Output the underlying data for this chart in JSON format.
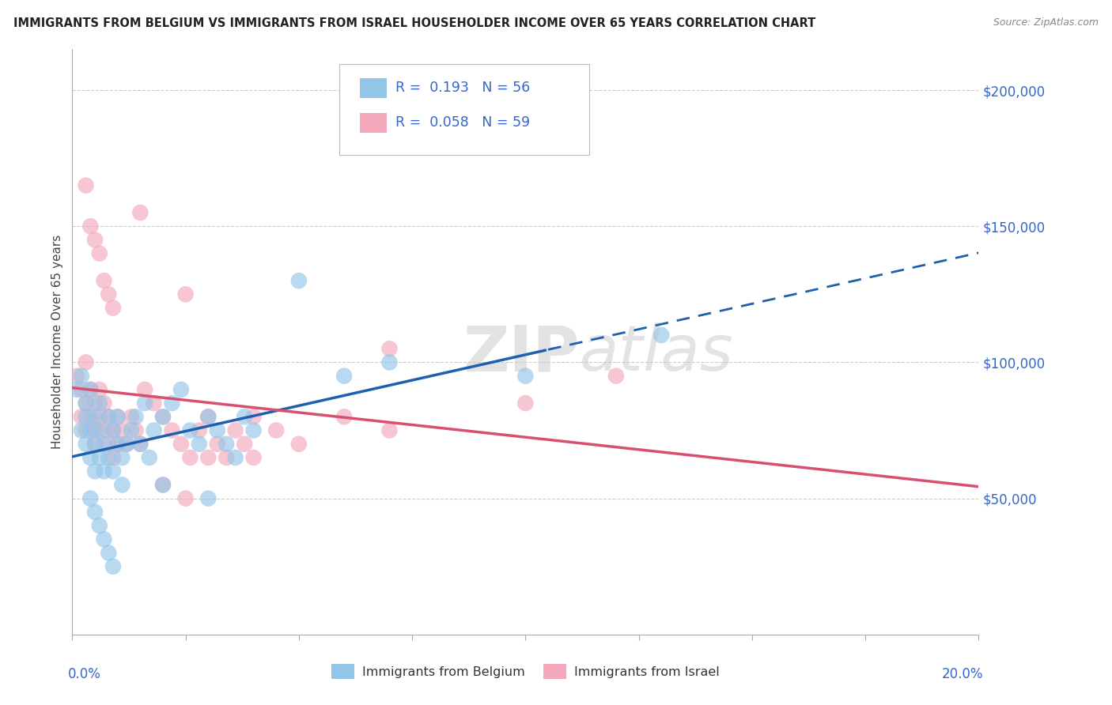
{
  "title": "IMMIGRANTS FROM BELGIUM VS IMMIGRANTS FROM ISRAEL HOUSEHOLDER INCOME OVER 65 YEARS CORRELATION CHART",
  "source": "Source: ZipAtlas.com",
  "ylabel": "Householder Income Over 65 years",
  "xlim": [
    0.0,
    0.2
  ],
  "ylim": [
    0,
    215000
  ],
  "yticks": [
    50000,
    100000,
    150000,
    200000
  ],
  "ytick_labels": [
    "$50,000",
    "$100,000",
    "$150,000",
    "$200,000"
  ],
  "belgium_R": 0.193,
  "belgium_N": 56,
  "israel_R": 0.058,
  "israel_N": 59,
  "belgium_color": "#92C5E8",
  "israel_color": "#F4A8BC",
  "belgium_line_color": "#1F5FAD",
  "israel_line_color": "#D94F70",
  "legend_label_belgium": "Immigrants from Belgium",
  "legend_label_israel": "Immigrants from Israel",
  "background_color": "#FFFFFF",
  "grid_color": "#CCCCCC",
  "watermark": "ZIPatlas",
  "belgium_x": [
    0.001,
    0.002,
    0.002,
    0.003,
    0.003,
    0.003,
    0.004,
    0.004,
    0.004,
    0.005,
    0.005,
    0.005,
    0.006,
    0.006,
    0.006,
    0.007,
    0.007,
    0.008,
    0.008,
    0.009,
    0.009,
    0.01,
    0.01,
    0.011,
    0.011,
    0.012,
    0.013,
    0.014,
    0.015,
    0.016,
    0.017,
    0.018,
    0.02,
    0.022,
    0.024,
    0.026,
    0.028,
    0.03,
    0.032,
    0.034,
    0.036,
    0.038,
    0.04,
    0.05,
    0.06,
    0.07,
    0.004,
    0.005,
    0.006,
    0.007,
    0.008,
    0.009,
    0.02,
    0.03,
    0.1,
    0.13
  ],
  "belgium_y": [
    90000,
    95000,
    75000,
    80000,
    85000,
    70000,
    90000,
    75000,
    65000,
    80000,
    70000,
    60000,
    85000,
    75000,
    65000,
    70000,
    60000,
    80000,
    65000,
    75000,
    60000,
    70000,
    80000,
    65000,
    55000,
    70000,
    75000,
    80000,
    70000,
    85000,
    65000,
    75000,
    80000,
    85000,
    90000,
    75000,
    70000,
    80000,
    75000,
    70000,
    65000,
    80000,
    75000,
    130000,
    95000,
    100000,
    50000,
    45000,
    40000,
    35000,
    30000,
    25000,
    55000,
    50000,
    95000,
    110000
  ],
  "israel_x": [
    0.001,
    0.002,
    0.002,
    0.003,
    0.003,
    0.003,
    0.004,
    0.004,
    0.005,
    0.005,
    0.005,
    0.006,
    0.006,
    0.007,
    0.007,
    0.008,
    0.008,
    0.009,
    0.009,
    0.01,
    0.01,
    0.011,
    0.012,
    0.013,
    0.014,
    0.015,
    0.016,
    0.018,
    0.02,
    0.022,
    0.024,
    0.026,
    0.028,
    0.03,
    0.032,
    0.034,
    0.036,
    0.038,
    0.04,
    0.045,
    0.05,
    0.06,
    0.07,
    0.003,
    0.004,
    0.005,
    0.006,
    0.007,
    0.008,
    0.009,
    0.02,
    0.025,
    0.03,
    0.07,
    0.1,
    0.12,
    0.025,
    0.015,
    0.04
  ],
  "israel_y": [
    95000,
    90000,
    80000,
    85000,
    75000,
    100000,
    80000,
    90000,
    75000,
    85000,
    70000,
    80000,
    90000,
    85000,
    75000,
    70000,
    80000,
    75000,
    65000,
    70000,
    80000,
    75000,
    70000,
    80000,
    75000,
    70000,
    90000,
    85000,
    80000,
    75000,
    70000,
    65000,
    75000,
    80000,
    70000,
    65000,
    75000,
    70000,
    80000,
    75000,
    70000,
    80000,
    75000,
    165000,
    150000,
    145000,
    140000,
    130000,
    125000,
    120000,
    55000,
    50000,
    65000,
    105000,
    85000,
    95000,
    125000,
    155000,
    65000
  ],
  "trend_x_solid_end": 0.105,
  "trend_x_dashed_start": 0.105
}
